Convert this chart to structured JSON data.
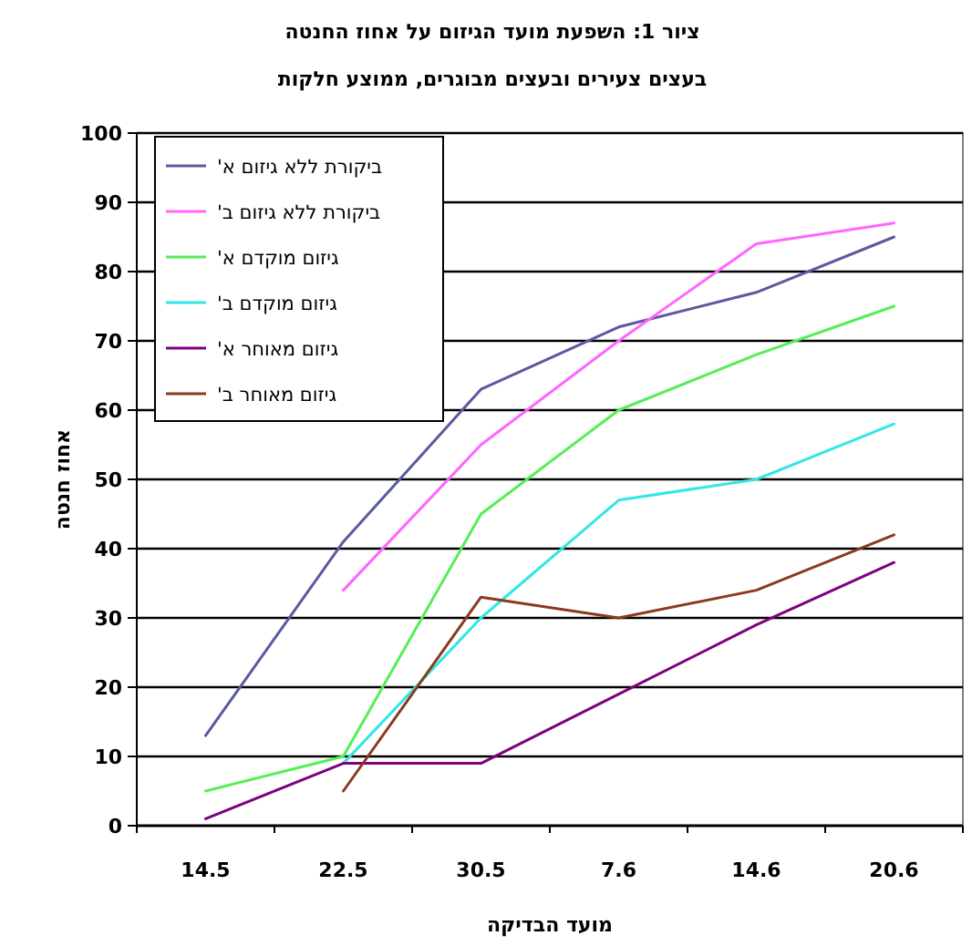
{
  "chart_data": {
    "type": "line",
    "title": "ציור 1: השפעת מועד הגיזום על אחוז החנטה",
    "subtitle": "בעצים צעירים ובעצים מבוגרים, ממוצע חלקות",
    "xlabel": "מועד הבדיקה",
    "ylabel": "אחוז חנטה",
    "categories": [
      "14.5",
      "22.5",
      "30.5",
      "7.6",
      "14.6",
      "20.6"
    ],
    "series": [
      {
        "name": "ביקורת ללא גיזום א'",
        "color": "#5a5aa0",
        "values": [
          13,
          41,
          63,
          72,
          77,
          85
        ]
      },
      {
        "name": "ביקורת ללא גיזום ב'",
        "color": "#ff66ff",
        "values": [
          null,
          34,
          55,
          70,
          84,
          87
        ]
      },
      {
        "name": "גיזום מוקדם א'",
        "color": "#55ee55",
        "values": [
          5,
          10,
          45,
          60,
          68,
          75
        ]
      },
      {
        "name": "גיזום מוקדם ב'",
        "color": "#33e6e6",
        "values": [
          null,
          9,
          30,
          47,
          50,
          58
        ]
      },
      {
        "name": "גיזום מאוחר א'",
        "color": "#800080",
        "values": [
          1,
          9,
          9,
          19,
          29,
          38
        ]
      },
      {
        "name": "גיזום מאוחר ב'",
        "color": "#8b3a20",
        "values": [
          null,
          5,
          33,
          30,
          34,
          42
        ]
      }
    ],
    "ylim": [
      0,
      100
    ],
    "yticks": [
      0,
      10,
      20,
      30,
      40,
      50,
      60,
      70,
      80,
      90,
      100
    ],
    "grid": "y",
    "legend": "top left",
    "marker": "none",
    "line_style": "solid"
  }
}
